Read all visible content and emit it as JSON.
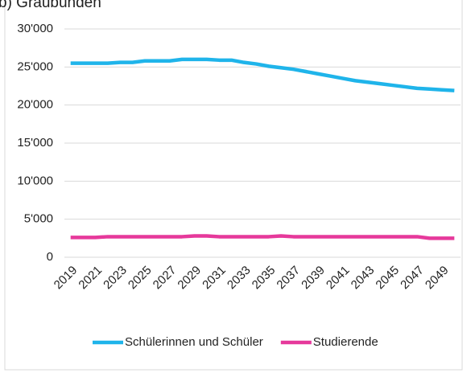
{
  "chart_data": {
    "type": "line",
    "title": "b) Graubünden",
    "x": [
      2019,
      2020,
      2021,
      2022,
      2023,
      2024,
      2025,
      2026,
      2027,
      2028,
      2029,
      2030,
      2031,
      2032,
      2033,
      2034,
      2035,
      2036,
      2037,
      2038,
      2039,
      2040,
      2041,
      2042,
      2043,
      2044,
      2045,
      2046,
      2047,
      2048,
      2049,
      2050
    ],
    "series": [
      {
        "name": "Schülerinnen und Schüler",
        "color": "#1fb4ea",
        "values": [
          25500,
          25500,
          25500,
          25500,
          25600,
          25600,
          25800,
          25800,
          25800,
          26000,
          26000,
          26000,
          25900,
          25900,
          25600,
          25400,
          25100,
          24900,
          24700,
          24400,
          24100,
          23800,
          23500,
          23200,
          23000,
          22800,
          22600,
          22400,
          22200,
          22100,
          22000,
          21900
        ]
      },
      {
        "name": "Studierende",
        "color": "#e6399b",
        "values": [
          2600,
          2600,
          2600,
          2700,
          2700,
          2700,
          2700,
          2700,
          2700,
          2700,
          2800,
          2800,
          2700,
          2700,
          2700,
          2700,
          2700,
          2800,
          2700,
          2700,
          2700,
          2700,
          2700,
          2700,
          2700,
          2700,
          2700,
          2700,
          2700,
          2500,
          2500,
          2500
        ]
      }
    ],
    "xlim": [
      2018.5,
      2050.5
    ],
    "xticks": [
      2019,
      2021,
      2023,
      2025,
      2027,
      2029,
      2031,
      2033,
      2035,
      2037,
      2039,
      2041,
      2043,
      2045,
      2047,
      2049
    ],
    "ylim": [
      0,
      30000
    ],
    "yticks": [
      0,
      {
        "value": 5000,
        "label": "5'000"
      },
      {
        "value": 10000,
        "label": "10'000"
      },
      {
        "value": 15000,
        "label": "15'000"
      },
      {
        "value": 20000,
        "label": "20'000"
      },
      {
        "value": 25000,
        "label": "25'000"
      },
      {
        "value": 30000,
        "label": "30'000"
      }
    ],
    "grid": true,
    "legend": "bottom"
  }
}
